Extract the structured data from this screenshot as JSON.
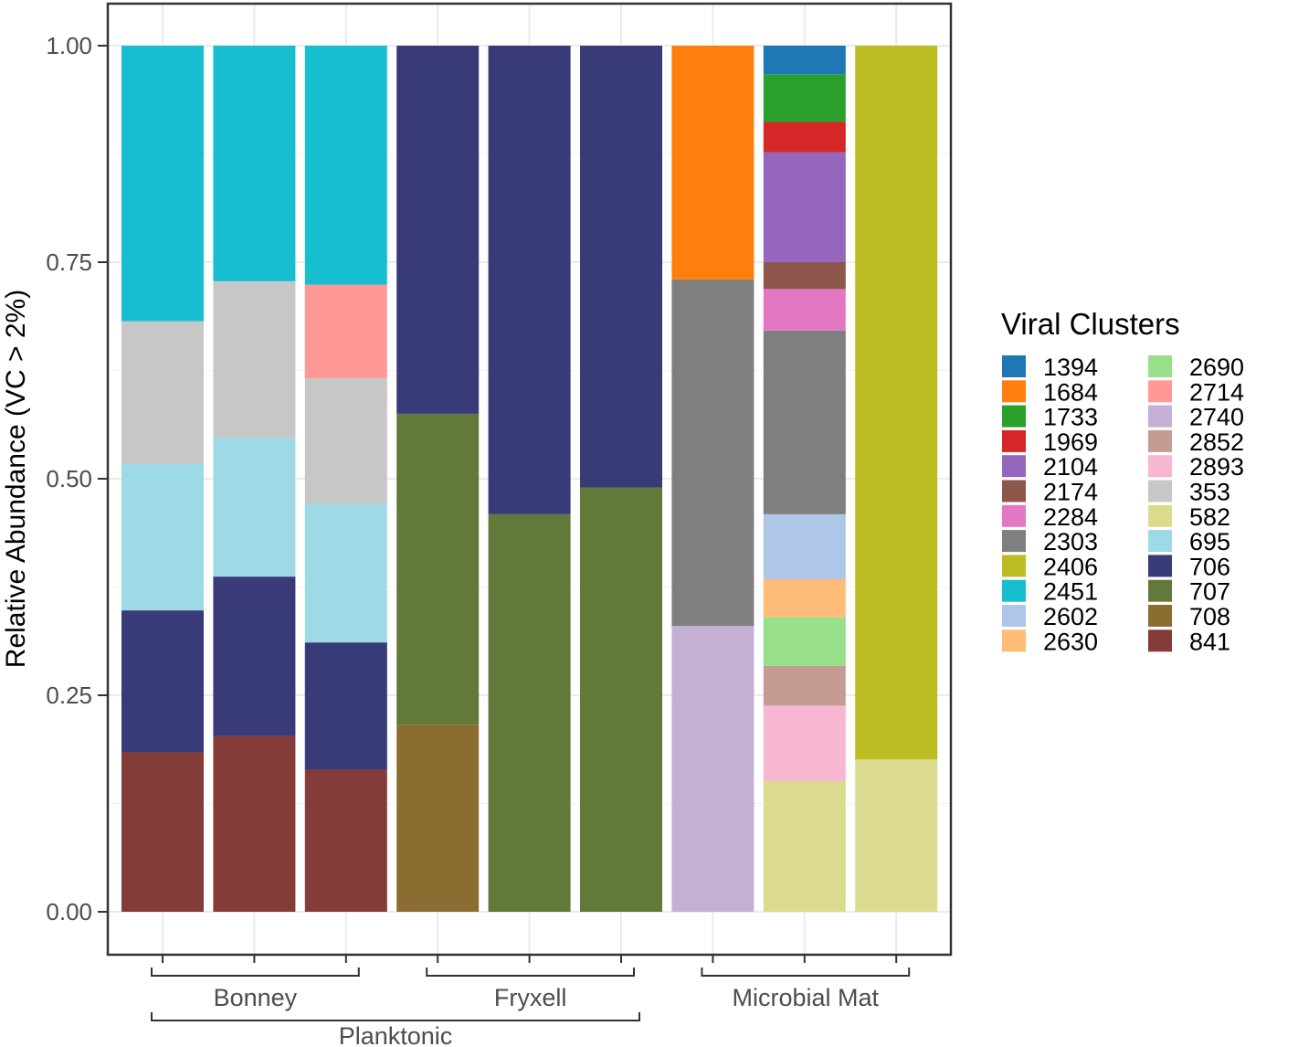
{
  "chart_data": {
    "type": "bar",
    "stacked": true,
    "ylabel": "Relative Abundance (VC > 2%)",
    "xlabel": "",
    "ylim": [
      0,
      1
    ],
    "y_ticks": [
      "0.00",
      "0.25",
      "0.50",
      "0.75",
      "1.00"
    ],
    "y_tick_values": [
      0,
      0.25,
      0.5,
      0.75,
      1.0
    ],
    "grid": true,
    "legend": {
      "title": "Viral Clusters",
      "position": "right",
      "entries": [
        {
          "name": "1394",
          "color": "#1f77b4"
        },
        {
          "name": "1684",
          "color": "#ff7f0e"
        },
        {
          "name": "1733",
          "color": "#2ca02c"
        },
        {
          "name": "1969",
          "color": "#d62728"
        },
        {
          "name": "2104",
          "color": "#9467bd"
        },
        {
          "name": "2174",
          "color": "#8c564b"
        },
        {
          "name": "2284",
          "color": "#e377c2"
        },
        {
          "name": "2303",
          "color": "#7f7f7f"
        },
        {
          "name": "2406",
          "color": "#bcbd22"
        },
        {
          "name": "2451",
          "color": "#17becf"
        },
        {
          "name": "2602",
          "color": "#aec7e8"
        },
        {
          "name": "2630",
          "color": "#ffbb78"
        },
        {
          "name": "2690",
          "color": "#98df8a"
        },
        {
          "name": "2714",
          "color": "#ff9896"
        },
        {
          "name": "2740",
          "color": "#c5b0d5"
        },
        {
          "name": "2852",
          "color": "#c49c94"
        },
        {
          "name": "2893",
          "color": "#f7b6d2"
        },
        {
          "name": "353",
          "color": "#c7c7c7"
        },
        {
          "name": "582",
          "color": "#dbdb8d"
        },
        {
          "name": "695",
          "color": "#9edae5"
        },
        {
          "name": "706",
          "color": "#393b79"
        },
        {
          "name": "707",
          "color": "#637939"
        },
        {
          "name": "708",
          "color": "#8c6d31"
        },
        {
          "name": "841",
          "color": "#843c39"
        }
      ]
    },
    "groups": [
      {
        "label": "Bonney",
        "bars": [
          0,
          1,
          2
        ]
      },
      {
        "label": "Fryxell",
        "bars": [
          3,
          4,
          5
        ]
      },
      {
        "label": "Microbial Mat",
        "bars": [
          6,
          7,
          8
        ]
      }
    ],
    "supergroups": [
      {
        "label": "Planktonic",
        "bars": [
          0,
          1,
          2,
          3,
          4,
          5
        ]
      }
    ],
    "bars": [
      {
        "segments": [
          {
            "cluster": "841",
            "value": 0.184
          },
          {
            "cluster": "706",
            "value": 0.164
          },
          {
            "cluster": "695",
            "value": 0.169
          },
          {
            "cluster": "353",
            "value": 0.165
          },
          {
            "cluster": "2451",
            "value": 0.318
          }
        ]
      },
      {
        "segments": [
          {
            "cluster": "841",
            "value": 0.203
          },
          {
            "cluster": "706",
            "value": 0.184
          },
          {
            "cluster": "695",
            "value": 0.16
          },
          {
            "cluster": "353",
            "value": 0.181
          },
          {
            "cluster": "2451",
            "value": 0.272
          }
        ]
      },
      {
        "segments": [
          {
            "cluster": "841",
            "value": 0.164
          },
          {
            "cluster": "706",
            "value": 0.147
          },
          {
            "cluster": "695",
            "value": 0.16
          },
          {
            "cluster": "353",
            "value": 0.145
          },
          {
            "cluster": "2714",
            "value": 0.108
          },
          {
            "cluster": "2451",
            "value": 0.276
          }
        ]
      },
      {
        "segments": [
          {
            "cluster": "708",
            "value": 0.216
          },
          {
            "cluster": "707",
            "value": 0.359
          },
          {
            "cluster": "706",
            "value": 0.425
          }
        ]
      },
      {
        "segments": [
          {
            "cluster": "707",
            "value": 0.459
          },
          {
            "cluster": "706",
            "value": 0.541
          }
        ]
      },
      {
        "segments": [
          {
            "cluster": "707",
            "value": 0.49
          },
          {
            "cluster": "706",
            "value": 0.51
          }
        ]
      },
      {
        "segments": [
          {
            "cluster": "2740",
            "value": 0.33
          },
          {
            "cluster": "2303",
            "value": 0.4
          },
          {
            "cluster": "1684",
            "value": 0.27
          }
        ]
      },
      {
        "segments": [
          {
            "cluster": "582",
            "value": 0.151
          },
          {
            "cluster": "2893",
            "value": 0.087
          },
          {
            "cluster": "2852",
            "value": 0.046
          },
          {
            "cluster": "2690",
            "value": 0.056
          },
          {
            "cluster": "2630",
            "value": 0.044
          },
          {
            "cluster": "2602",
            "value": 0.075
          },
          {
            "cluster": "2303",
            "value": 0.212
          },
          {
            "cluster": "2284",
            "value": 0.048
          },
          {
            "cluster": "2174",
            "value": 0.031
          },
          {
            "cluster": "2104",
            "value": 0.127
          },
          {
            "cluster": "1969",
            "value": 0.035
          },
          {
            "cluster": "1733",
            "value": 0.055
          },
          {
            "cluster": "1394",
            "value": 0.033
          }
        ]
      },
      {
        "segments": [
          {
            "cluster": "582",
            "value": 0.176
          },
          {
            "cluster": "2406",
            "value": 0.824
          }
        ]
      }
    ]
  }
}
